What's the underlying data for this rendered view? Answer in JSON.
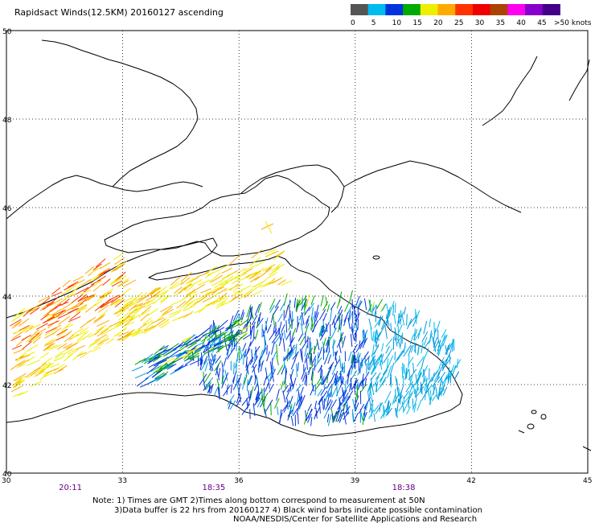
{
  "title": "Rapidsact Winds(12.5KM) 20160127 ascending",
  "legend": {
    "labels": [
      "0",
      "5",
      "10",
      "15",
      "20",
      "25",
      "30",
      "35",
      "40",
      "45",
      ">50 knots"
    ],
    "colors": [
      "#555555",
      "#00bbee",
      "#0033dd",
      "#00aa00",
      "#eeee00",
      "#ffaa00",
      "#ff3300",
      "#ee0000",
      "#aa4400",
      "#ff00ee",
      "#8800cc",
      "#440088"
    ]
  },
  "map": {
    "lat_labels": [
      "50",
      "48",
      "46",
      "44",
      "42",
      "40"
    ],
    "lon_labels": [
      "30",
      "33",
      "36",
      "39",
      "42",
      "45"
    ],
    "lat_values": [
      50,
      48,
      46,
      44,
      42,
      40
    ],
    "lon_values": [
      30,
      33,
      36,
      39,
      42,
      45
    ],
    "pass_times": [
      {
        "label": "20:11",
        "lon": 31.6
      },
      {
        "label": "18:35",
        "lon": 35.3
      },
      {
        "label": "18:38",
        "lon": 40.2
      }
    ]
  },
  "notes": {
    "line1": "Note: 1) Times are GMT 2)Times along bottom correspond to measurement at 50N",
    "line2": "3)Data buffer is 22 hrs from 20160127 4) Black wind barbs indicate possible contamination",
    "line3": "NOAA/NESDIS/Center for Satellite Applications and Research"
  }
}
